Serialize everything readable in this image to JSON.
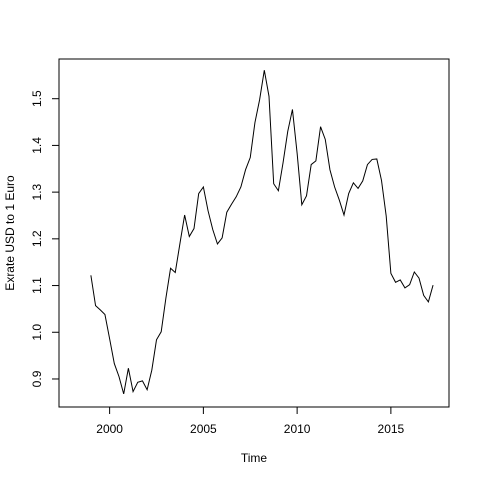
{
  "chart_data": {
    "type": "line",
    "title": "",
    "xlabel": "Time",
    "ylabel": "Exrate USD to 1 Euro",
    "xlim": [
      1997.3,
      2018.1
    ],
    "ylim": [
      0.84,
      1.585
    ],
    "x_ticks": [
      2000,
      2005,
      2010,
      2015
    ],
    "x_tick_labels": [
      "2000",
      "2005",
      "2010",
      "2015"
    ],
    "y_ticks": [
      0.9,
      1.0,
      1.1,
      1.2,
      1.3,
      1.4,
      1.5
    ],
    "y_tick_labels": [
      "0.9",
      "1.0",
      "1.1",
      "1.2",
      "1.3",
      "1.4",
      "1.5"
    ],
    "grid": false,
    "line_color": "#000000",
    "series": [
      {
        "x": [
          1999.0,
          1999.25,
          1999.5,
          1999.75,
          2000.0,
          2000.25,
          2000.5,
          2000.75,
          2001.0,
          2001.25,
          2001.5,
          2001.75,
          2002.0,
          2002.25,
          2002.5,
          2002.75,
          2003.0,
          2003.25,
          2003.5,
          2003.75,
          2004.0,
          2004.25,
          2004.5,
          2004.75,
          2005.0,
          2005.25,
          2005.5,
          2005.75,
          2006.0,
          2006.25,
          2006.5,
          2006.75,
          2007.0,
          2007.25,
          2007.5,
          2007.75,
          2008.0,
          2008.25,
          2008.5,
          2008.75,
          2009.0,
          2009.25,
          2009.5,
          2009.75,
          2010.0,
          2010.25,
          2010.5,
          2010.75,
          2011.0,
          2011.25,
          2011.5,
          2011.75,
          2012.0,
          2012.25,
          2012.5,
          2012.75,
          2013.0,
          2013.25,
          2013.5,
          2013.75,
          2014.0,
          2014.25,
          2014.5,
          2014.75,
          2015.0,
          2015.25,
          2015.5,
          2015.75,
          2016.0,
          2016.25,
          2016.5,
          2016.75,
          2017.0,
          2017.25
        ],
        "values": [
          1.122,
          1.057,
          1.048,
          1.038,
          0.986,
          0.933,
          0.905,
          0.868,
          0.923,
          0.873,
          0.893,
          0.896,
          0.877,
          0.919,
          0.984,
          1.001,
          1.073,
          1.137,
          1.128,
          1.19,
          1.251,
          1.205,
          1.222,
          1.297,
          1.311,
          1.26,
          1.22,
          1.189,
          1.202,
          1.257,
          1.274,
          1.29,
          1.311,
          1.348,
          1.374,
          1.449,
          1.498,
          1.561,
          1.505,
          1.318,
          1.303,
          1.363,
          1.43,
          1.477,
          1.383,
          1.273,
          1.292,
          1.359,
          1.367,
          1.44,
          1.413,
          1.348,
          1.311,
          1.283,
          1.251,
          1.297,
          1.32,
          1.308,
          1.324,
          1.359,
          1.37,
          1.371,
          1.325,
          1.249,
          1.126,
          1.107,
          1.112,
          1.095,
          1.102,
          1.129,
          1.116,
          1.079,
          1.065,
          1.101
        ]
      }
    ]
  }
}
